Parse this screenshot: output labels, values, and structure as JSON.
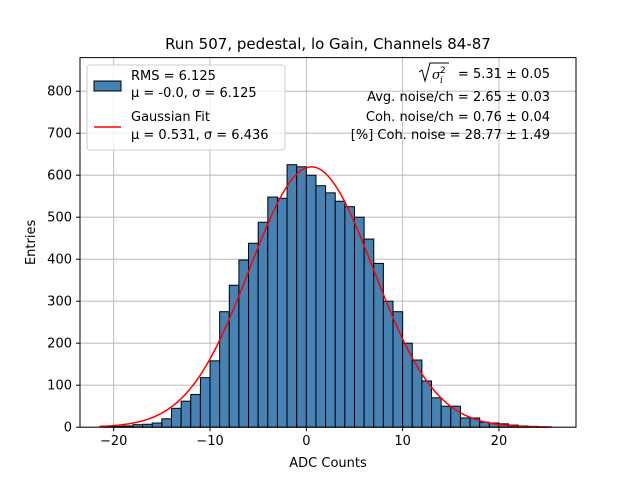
{
  "chart_data": {
    "type": "bar",
    "title": "Run 507, pedestal, lo Gain, Channels 84-87",
    "xlabel": "ADC Counts",
    "ylabel": "Entries",
    "xlim": [
      -23.5,
      28
    ],
    "ylim": [
      0,
      880
    ],
    "xticks": [
      -20,
      -10,
      0,
      10,
      20
    ],
    "xtick_labels": [
      "−20",
      "−10",
      "0",
      "10",
      "20"
    ],
    "yticks": [
      0,
      100,
      200,
      300,
      400,
      500,
      600,
      700,
      800
    ],
    "ytick_labels": [
      "0",
      "100",
      "200",
      "300",
      "400",
      "500",
      "600",
      "700",
      "800"
    ],
    "grid": true,
    "bin_width": 1,
    "bin_left_edges": [
      -21,
      -20,
      -19,
      -18,
      -17,
      -16,
      -15,
      -14,
      -13,
      -12,
      -11,
      -10,
      -9,
      -8,
      -7,
      -6,
      -5,
      -4,
      -3,
      -2,
      -1,
      0,
      1,
      2,
      3,
      4,
      5,
      6,
      7,
      8,
      9,
      10,
      11,
      12,
      13,
      14,
      15,
      16,
      17,
      18,
      19,
      20,
      21,
      22,
      23,
      24
    ],
    "series": [
      {
        "name": "RMS = 6.125",
        "name_line2": "μ = -0.0, σ = 6.125",
        "color": "#4682b4",
        "values": [
          1,
          2,
          3,
          6,
          7,
          10,
          20,
          45,
          62,
          78,
          118,
          158,
          275,
          338,
          398,
          438,
          488,
          548,
          545,
          625,
          620,
          600,
          575,
          558,
          538,
          525,
          500,
          448,
          390,
          300,
          275,
          200,
          160,
          110,
          70,
          50,
          50,
          22,
          22,
          12,
          10,
          8,
          5,
          3,
          2,
          1
        ]
      }
    ],
    "fit": {
      "name": "Gaussian Fit",
      "name_line2": "μ = 0.531, σ = 6.436",
      "color": "#ff0000",
      "mu": 0.531,
      "sigma": 6.436,
      "amplitude": 620,
      "x_range": [
        -21.5,
        25.5
      ]
    },
    "legend_position": "upper-left",
    "annotations": {
      "line1_suffix": " = 5.31 ± 0.05",
      "line2": "Avg. noise/ch = 2.65 ± 0.03",
      "line3": "Coh. noise/ch = 0.76 ± 0.04",
      "line4": "[%] Coh. noise = 28.77 ± 1.49"
    }
  }
}
